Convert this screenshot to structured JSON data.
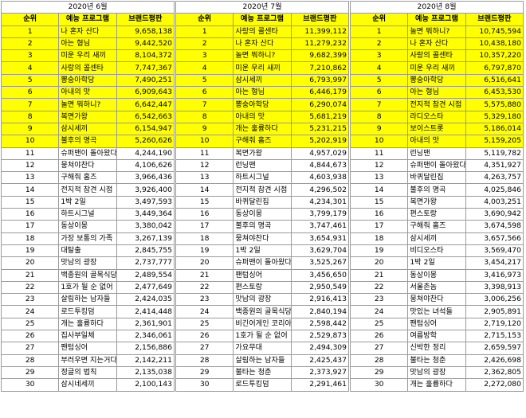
{
  "headers": {
    "rank": "순위",
    "program": "예능 프로그램",
    "score": "브랜드평판"
  },
  "highlight_color": "#ffff00",
  "months": [
    {
      "period": "2020년 6월",
      "rows": [
        {
          "rank": "1",
          "program": "나 혼자 산다",
          "score": "9,658,138"
        },
        {
          "rank": "2",
          "program": "아는 형님",
          "score": "9,442,520"
        },
        {
          "rank": "3",
          "program": "미운 우리 새끼",
          "score": "8,104,372"
        },
        {
          "rank": "4",
          "program": "사랑의 콜센타",
          "score": "7,747,367"
        },
        {
          "rank": "5",
          "program": "뽕숭아학당",
          "score": "7,490,251"
        },
        {
          "rank": "6",
          "program": "아내의 맛",
          "score": "6,909,643"
        },
        {
          "rank": "7",
          "program": "놀면 뭐하니?",
          "score": "6,642,447"
        },
        {
          "rank": "8",
          "program": "복면가왕",
          "score": "6,542,663"
        },
        {
          "rank": "9",
          "program": "삼시세끼",
          "score": "6,154,947"
        },
        {
          "rank": "10",
          "program": "불후의 명곡",
          "score": "5,260,626"
        },
        {
          "rank": "11",
          "program": "슈퍼맨이 돌아왔다",
          "score": "4,244,190"
        },
        {
          "rank": "12",
          "program": "뭉쳐야찬다",
          "score": "4,106,626"
        },
        {
          "rank": "13",
          "program": "구해줘 홈즈",
          "score": "3,966,436"
        },
        {
          "rank": "14",
          "program": "전지적 참견 시점",
          "score": "3,926,400"
        },
        {
          "rank": "15",
          "program": "1박 2일",
          "score": "3,497,593"
        },
        {
          "rank": "16",
          "program": "하트시그널",
          "score": "3,449,364"
        },
        {
          "rank": "17",
          "program": "동상이몽",
          "score": "3,380,042"
        },
        {
          "rank": "18",
          "program": "가장 보통의 가족",
          "score": "3,267,139"
        },
        {
          "rank": "19",
          "program": "대탈출",
          "score": "2,845,755"
        },
        {
          "rank": "20",
          "program": "맛남의 광장",
          "score": "2,737,777"
        },
        {
          "rank": "21",
          "program": "백종원의 골목식당",
          "score": "2,489,554"
        },
        {
          "rank": "22",
          "program": "1호가 될 순 없어",
          "score": "2,477,649"
        },
        {
          "rank": "23",
          "program": "살림하는 남자들",
          "score": "2,424,035"
        },
        {
          "rank": "24",
          "program": "로드투킹덤",
          "score": "2,414,448"
        },
        {
          "rank": "25",
          "program": "개는 훌륭하다",
          "score": "2,361,901"
        },
        {
          "rank": "26",
          "program": "집사부일체",
          "score": "2,346,061"
        },
        {
          "rank": "27",
          "program": "팬텀싱어",
          "score": "2,156,886"
        },
        {
          "rank": "28",
          "program": "부러우면 지는거다",
          "score": "2,142,211"
        },
        {
          "rank": "29",
          "program": "정글의 법칙",
          "score": "2,135,038"
        },
        {
          "rank": "30",
          "program": "삼시네세끼",
          "score": "2,100,143"
        }
      ]
    },
    {
      "period": "2020년 7월",
      "rows": [
        {
          "rank": "1",
          "program": "사랑의 콜센타",
          "score": "11,399,112"
        },
        {
          "rank": "2",
          "program": "나 혼자 산다",
          "score": "11,279,232"
        },
        {
          "rank": "3",
          "program": "놀면 뭐하니?",
          "score": "9,682,399"
        },
        {
          "rank": "4",
          "program": "미운 우리 새끼",
          "score": "7,210,862"
        },
        {
          "rank": "5",
          "program": "삼시세끼",
          "score": "6,793,997"
        },
        {
          "rank": "6",
          "program": "아는 형님",
          "score": "6,446,179"
        },
        {
          "rank": "7",
          "program": "뽕숭아학당",
          "score": "6,290,074"
        },
        {
          "rank": "8",
          "program": "아내의 맛",
          "score": "5,681,219"
        },
        {
          "rank": "9",
          "program": "개는 훌륭하다",
          "score": "5,231,215"
        },
        {
          "rank": "10",
          "program": "구해줘 홈즈",
          "score": "5,202,919"
        },
        {
          "rank": "11",
          "program": "복면가왕",
          "score": "4,957,029"
        },
        {
          "rank": "12",
          "program": "런닝맨",
          "score": "4,844,673"
        },
        {
          "rank": "13",
          "program": "하트시그널",
          "score": "4,603,938"
        },
        {
          "rank": "14",
          "program": "전지적 참견 시점",
          "score": "4,296,502"
        },
        {
          "rank": "15",
          "program": "바퀴달린집",
          "score": "4,234,301"
        },
        {
          "rank": "16",
          "program": "동상이몽",
          "score": "3,799,179"
        },
        {
          "rank": "17",
          "program": "불후의 명곡",
          "score": "3,747,461"
        },
        {
          "rank": "18",
          "program": "뭉쳐야찬다",
          "score": "3,654,931"
        },
        {
          "rank": "19",
          "program": "1박 2일",
          "score": "3,629,704"
        },
        {
          "rank": "20",
          "program": "슈퍼맨이 돌아왔다",
          "score": "3,525,267"
        },
        {
          "rank": "21",
          "program": "팬텀싱어",
          "score": "3,456,650"
        },
        {
          "rank": "22",
          "program": "편스토랑",
          "score": "2,950,549"
        },
        {
          "rank": "23",
          "program": "맛남의 광장",
          "score": "2,916,413"
        },
        {
          "rank": "24",
          "program": "백종원의 골목식당",
          "score": "2,840,194"
        },
        {
          "rank": "25",
          "program": "비긴어게인 코리아",
          "score": "2,598,442"
        },
        {
          "rank": "26",
          "program": "1호가 될 순 없어",
          "score": "2,529,873"
        },
        {
          "rank": "27",
          "program": "가요무대",
          "score": "2,494,309"
        },
        {
          "rank": "28",
          "program": "살림하는 남자들",
          "score": "2,425,437"
        },
        {
          "rank": "29",
          "program": "불타는 청춘",
          "score": "2,373,927"
        },
        {
          "rank": "30",
          "program": "로드투킹덤",
          "score": "2,291,461"
        }
      ]
    },
    {
      "period": "2020년 8월",
      "rows": [
        {
          "rank": "1",
          "program": "놀면 뭐하니?",
          "score": "10,745,594"
        },
        {
          "rank": "2",
          "program": "나 혼자 산다",
          "score": "10,438,180"
        },
        {
          "rank": "3",
          "program": "사랑의 콜센타",
          "score": "10,357,220"
        },
        {
          "rank": "4",
          "program": "미운 우리 새끼",
          "score": "6,797,870"
        },
        {
          "rank": "5",
          "program": "뽕숭아학당",
          "score": "6,516,641"
        },
        {
          "rank": "6",
          "program": "아는 형님",
          "score": "6,453,530"
        },
        {
          "rank": "7",
          "program": "전지적 참견 시점",
          "score": "5,575,880"
        },
        {
          "rank": "8",
          "program": "라디오스타",
          "score": "5,329,180"
        },
        {
          "rank": "9",
          "program": "보이스트롯",
          "score": "5,186,014"
        },
        {
          "rank": "10",
          "program": "아내의 맛",
          "score": "5,159,205"
        },
        {
          "rank": "11",
          "program": "런닝맨",
          "score": "5,119,782"
        },
        {
          "rank": "12",
          "program": "슈퍼맨이 돌아왔다",
          "score": "4,351,927"
        },
        {
          "rank": "13",
          "program": "바퀴달린집",
          "score": "4,263,757"
        },
        {
          "rank": "14",
          "program": "불후의 명곡",
          "score": "4,025,846"
        },
        {
          "rank": "15",
          "program": "복면가왕",
          "score": "4,003,251"
        },
        {
          "rank": "16",
          "program": "편스토랑",
          "score": "3,690,942"
        },
        {
          "rank": "17",
          "program": "구해줘 홈즈",
          "score": "3,674,598"
        },
        {
          "rank": "18",
          "program": "삼시세끼",
          "score": "3,657,566"
        },
        {
          "rank": "19",
          "program": "비디오스타",
          "score": "3,569,470"
        },
        {
          "rank": "20",
          "program": "1박 2일",
          "score": "3,454,217"
        },
        {
          "rank": "21",
          "program": "동상이몽",
          "score": "3,416,973"
        },
        {
          "rank": "22",
          "program": "서울촌놈",
          "score": "3,398,913"
        },
        {
          "rank": "23",
          "program": "뭉쳐야찬다",
          "score": "3,006,256"
        },
        {
          "rank": "24",
          "program": "맛있는 녀석들",
          "score": "2,905,891"
        },
        {
          "rank": "25",
          "program": "팬텀싱어",
          "score": "2,719,120"
        },
        {
          "rank": "26",
          "program": "여름방학",
          "score": "2,715,153"
        },
        {
          "rank": "27",
          "program": "신박한 정리",
          "score": "2,659,597"
        },
        {
          "rank": "28",
          "program": "불타는 청춘",
          "score": "2,426,698"
        },
        {
          "rank": "29",
          "program": "맛남의 광장",
          "score": "2,362,805"
        },
        {
          "rank": "30",
          "program": "개는 훌륭하다",
          "score": "2,272,080"
        }
      ]
    }
  ]
}
